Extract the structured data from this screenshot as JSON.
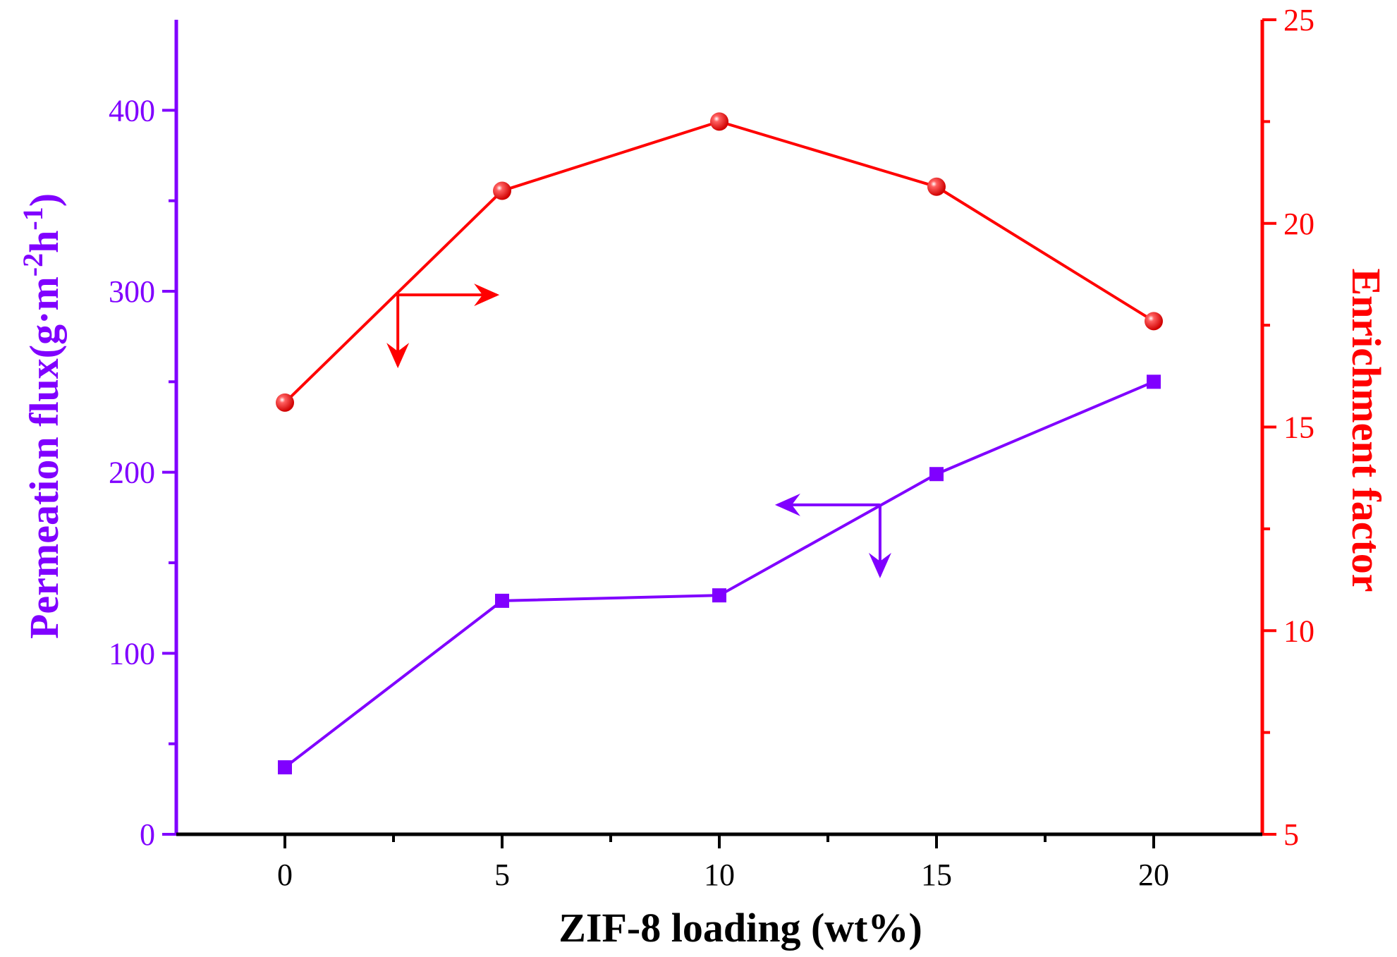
{
  "chart_data": {
    "type": "line",
    "x": [
      0,
      5,
      10,
      15,
      20
    ],
    "xlabel": "ZIF-8 loading (wt%)",
    "xlim": [
      -2.5,
      22.5
    ],
    "xticks": [
      "0",
      "5",
      "10",
      "15",
      "20"
    ],
    "series": [
      {
        "name": "Permeation flux",
        "axis": "left",
        "color": "#8000ff",
        "marker": "square",
        "values": [
          37,
          129,
          132,
          199,
          250
        ]
      },
      {
        "name": "Enrichment factor",
        "axis": "right",
        "color": "#ff0000",
        "marker": "sphere",
        "values": [
          15.6,
          20.8,
          22.5,
          20.9,
          17.6
        ]
      }
    ],
    "y_left": {
      "label_main": "Permeation flux(g·m",
      "label_sup1": "-2",
      "label_mid": "h",
      "label_sup2": "-1",
      "label_end": ")",
      "ylim": [
        0,
        450
      ],
      "ticks": [
        "0",
        "100",
        "200",
        "300",
        "400"
      ],
      "color": "#8000ff"
    },
    "y_right": {
      "label": "Enrichment factor",
      "ylim": [
        5,
        25
      ],
      "ticks": [
        "5",
        "10",
        "15",
        "20",
        "25"
      ],
      "color": "#ff0000"
    },
    "annotations": [
      {
        "type": "axis-pointer",
        "series": "Enrichment factor",
        "x": 2.6,
        "y_left": 298,
        "arrows": [
          "right",
          "down"
        ],
        "color": "#ff0000"
      },
      {
        "type": "axis-pointer",
        "series": "Permeation flux",
        "x": 13.7,
        "y_left": 182,
        "arrows": [
          "left",
          "down"
        ],
        "color": "#8000ff"
      }
    ]
  }
}
